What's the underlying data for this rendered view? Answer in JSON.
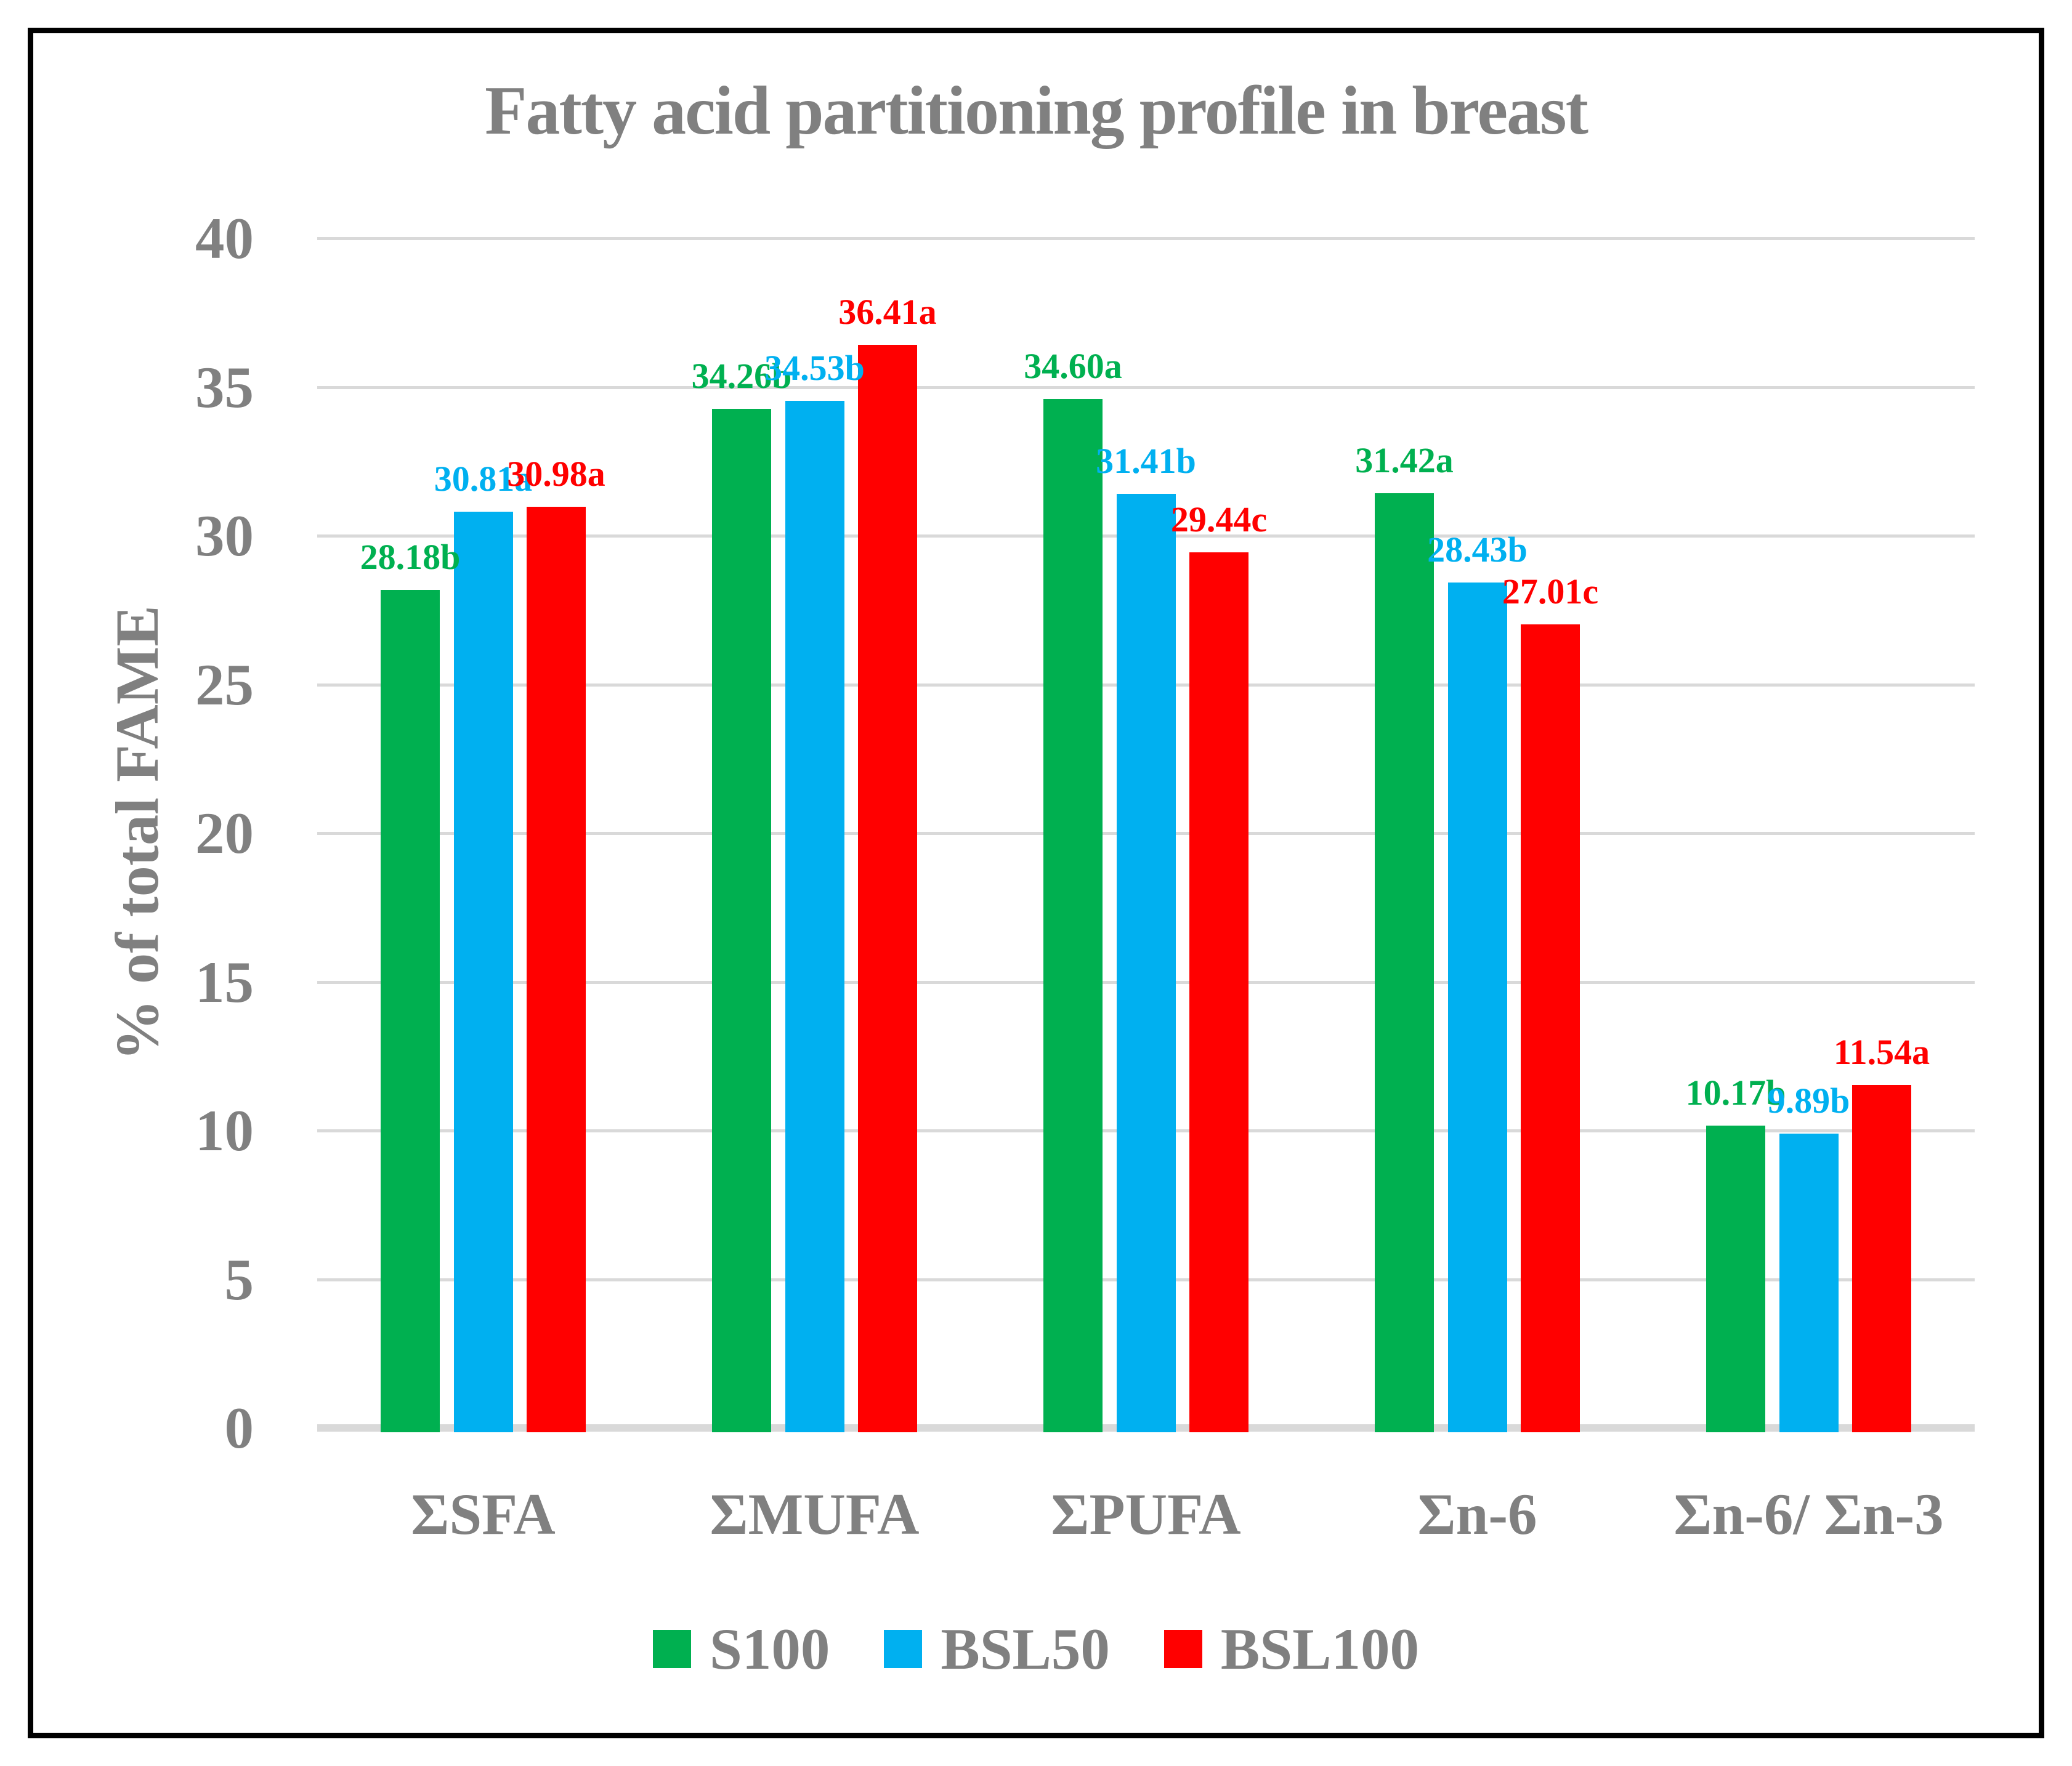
{
  "chart_data": {
    "type": "bar",
    "title": "Fatty acid partitioning profile in breast",
    "xlabel": "",
    "ylabel": "% of total FAME",
    "ylim": [
      0,
      40
    ],
    "yticks": [
      0,
      5,
      10,
      15,
      20,
      25,
      30,
      35,
      40
    ],
    "grid": true,
    "legend_position": "bottom",
    "categories": [
      "ΣSFA",
      "ΣMUFA",
      "ΣPUFA",
      "Σn-6",
      "Σn-6/ Σn-3"
    ],
    "series": [
      {
        "name": "S100",
        "color": "#00B050",
        "values": [
          28.18,
          34.26,
          34.6,
          31.42,
          10.17
        ],
        "data_labels": [
          "28.18b",
          "34.26b",
          "34.60a",
          "31.42a",
          "10.17b"
        ]
      },
      {
        "name": "BSL50",
        "color": "#00B0F0",
        "values": [
          30.81,
          34.53,
          31.41,
          28.43,
          9.89
        ],
        "data_labels": [
          "30.81a",
          "34.53b",
          "31.41b",
          "28.43b",
          "9.89b"
        ]
      },
      {
        "name": "BSL100",
        "color": "#FF0000",
        "values": [
          30.98,
          36.41,
          29.44,
          27.01,
          11.54
        ],
        "data_labels": [
          "30.98a",
          "36.41a",
          "29.44c",
          "27.01c",
          "11.54a"
        ]
      }
    ]
  },
  "style": {
    "text_color": "#808080",
    "gridline_color": "#D9D9D9",
    "background": "#FFFFFF",
    "border_color": "#000000"
  }
}
